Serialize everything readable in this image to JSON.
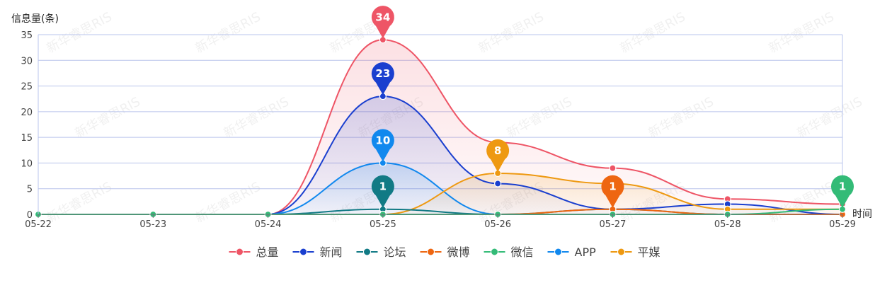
{
  "chart_data": {
    "type": "line",
    "ylabel": "信息量(条)",
    "xlabel": "时间",
    "ylim": [
      0,
      35
    ],
    "y_ticks": [
      0,
      5,
      10,
      15,
      20,
      25,
      30,
      35
    ],
    "categories": [
      "05-22",
      "05-23",
      "05-24",
      "05-25",
      "05-26",
      "05-27",
      "05-28",
      "05-29"
    ],
    "grid": true,
    "legend_position": "bottom",
    "series": [
      {
        "name": "总量",
        "color": "#ee5566",
        "values": [
          0,
          0,
          0,
          34,
          14,
          9,
          3,
          2
        ],
        "area": true,
        "max_label": "34"
      },
      {
        "name": "新闻",
        "color": "#1a3fcf",
        "values": [
          0,
          0,
          0,
          23,
          6,
          1,
          2,
          0
        ],
        "area": true,
        "max_label": "23"
      },
      {
        "name": "论坛",
        "color": "#117a85",
        "values": [
          0,
          0,
          0,
          1,
          0,
          1,
          0,
          0
        ],
        "area": false,
        "max_label": "1"
      },
      {
        "name": "微博",
        "color": "#ee6611",
        "values": [
          0,
          0,
          0,
          0,
          0,
          1,
          0,
          0
        ],
        "area": false,
        "max_label": "1"
      },
      {
        "name": "微信",
        "color": "#33bb77",
        "values": [
          0,
          0,
          0,
          0,
          0,
          0,
          0,
          1
        ],
        "area": false,
        "max_label": "1"
      },
      {
        "name": "APP",
        "color": "#1188ee",
        "values": [
          0,
          0,
          0,
          10,
          0,
          0,
          0,
          0
        ],
        "area": true,
        "max_label": "10"
      },
      {
        "name": "平媒",
        "color": "#ee9911",
        "values": [
          0,
          0,
          0,
          0,
          8,
          6,
          1,
          1
        ],
        "area": true,
        "max_label": "8"
      }
    ],
    "watermark": "新华睿思RIS"
  }
}
